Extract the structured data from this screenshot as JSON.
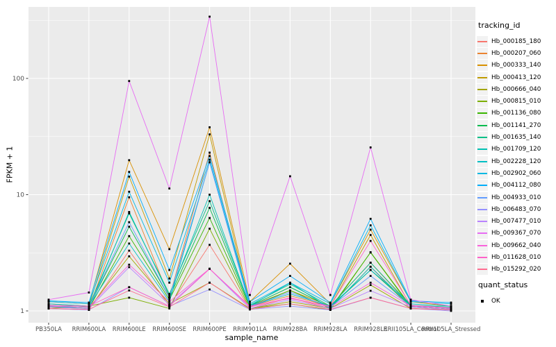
{
  "figure": {
    "background": "#FFFFFF",
    "panel_background": "#EBEBEB",
    "grid_color": "#FFFFFF",
    "point_color": "#000000",
    "axis_text_color": "#4D4D4D",
    "tick_color": "#333333"
  },
  "chart_data": {
    "type": "line",
    "title": "",
    "xlabel": "sample_name",
    "ylabel": "FPKM + 1",
    "yscale": "log10",
    "yticks": [
      1,
      10,
      100
    ],
    "yminor": [
      3.162,
      31.62,
      316.2
    ],
    "ylim": [
      0.79,
      410
    ],
    "grid": true,
    "marker": "black-square",
    "legend_position": "right",
    "legend_title": "tracking_id",
    "categories": [
      "PB350LA",
      "RRIM600LA",
      "RRIM600LE",
      "RRIM600SE",
      "RRIM600PE",
      "RRIM901LA",
      "RRIM928BA",
      "RRIM928LA",
      "RRIM928LE",
      "RRII105LA_Control",
      "RRII105LA_Stressed"
    ],
    "series": [
      {
        "name": "Hb_000185_180",
        "color": "#F8766D",
        "values": [
          1.05,
          1.02,
          3.3,
          1.1,
          3.7,
          1.05,
          1.3,
          1.05,
          2.4,
          1.05,
          1.02
        ]
      },
      {
        "name": "Hb_000207_060",
        "color": "#EA8331",
        "values": [
          1.1,
          1.05,
          9.5,
          1.3,
          23.0,
          1.1,
          1.35,
          1.1,
          2.6,
          1.1,
          1.05
        ]
      },
      {
        "name": "Hb_000333_140",
        "color": "#D89000",
        "values": [
          1.2,
          1.15,
          19.8,
          3.4,
          38.0,
          1.2,
          2.55,
          1.15,
          5.0,
          1.2,
          1.1
        ]
      },
      {
        "name": "Hb_000413_120",
        "color": "#C09B00",
        "values": [
          1.15,
          1.1,
          14.3,
          1.9,
          33.0,
          1.1,
          1.5,
          1.1,
          4.5,
          1.1,
          1.05
        ]
      },
      {
        "name": "Hb_000666_040",
        "color": "#A3A500",
        "values": [
          1.1,
          1.05,
          2.95,
          1.15,
          1.75,
          1.05,
          1.2,
          1.05,
          1.67,
          1.05,
          1.02
        ]
      },
      {
        "name": "Hb_000815_010",
        "color": "#7CAE00",
        "values": [
          1.05,
          1.1,
          1.3,
          1.05,
          5.1,
          1.05,
          1.15,
          1.02,
          3.2,
          1.1,
          1.05
        ]
      },
      {
        "name": "Hb_001136_080",
        "color": "#39B600",
        "values": [
          1.08,
          1.05,
          4.4,
          1.25,
          6.3,
          1.08,
          1.5,
          1.05,
          3.18,
          1.08,
          1.03
        ]
      },
      {
        "name": "Hb_001141_270",
        "color": "#00BB4E",
        "values": [
          1.1,
          1.08,
          5.3,
          1.3,
          7.7,
          1.1,
          1.6,
          1.08,
          2.25,
          1.1,
          1.05
        ]
      },
      {
        "name": "Hb_001635_140",
        "color": "#00C087",
        "values": [
          1.12,
          1.1,
          6.9,
          1.4,
          8.8,
          1.12,
          1.7,
          1.1,
          2.6,
          1.12,
          1.08
        ]
      },
      {
        "name": "Hb_001709_120",
        "color": "#00C0B2",
        "values": [
          1.1,
          1.05,
          7.1,
          1.35,
          10.0,
          1.1,
          1.75,
          1.05,
          2.4,
          1.1,
          1.05
        ]
      },
      {
        "name": "Hb_002228_120",
        "color": "#00BFC4",
        "values": [
          1.15,
          1.1,
          3.8,
          1.2,
          19.0,
          1.1,
          1.4,
          1.1,
          2.25,
          1.15,
          1.1
        ]
      },
      {
        "name": "Hb_002902_060",
        "color": "#00B9E3",
        "values": [
          1.2,
          1.15,
          10.6,
          1.75,
          20.0,
          1.15,
          1.75,
          1.15,
          5.45,
          1.2,
          1.15
        ]
      },
      {
        "name": "Hb_004112_080",
        "color": "#00ADFA",
        "values": [
          1.22,
          1.18,
          15.7,
          2.25,
          21.5,
          1.2,
          2.0,
          1.18,
          6.2,
          1.22,
          1.18
        ]
      },
      {
        "name": "Hb_004933_010",
        "color": "#619CFF",
        "values": [
          1.1,
          1.08,
          5.8,
          1.3,
          19.0,
          1.1,
          1.45,
          1.08,
          2.0,
          1.1,
          1.06
        ]
      },
      {
        "name": "Hb_006483_070",
        "color": "#9590FF",
        "values": [
          1.05,
          1.02,
          1.6,
          1.1,
          1.53,
          1.03,
          1.1,
          1.02,
          1.3,
          1.05,
          1.0
        ]
      },
      {
        "name": "Hb_007477_010",
        "color": "#B983FF",
        "values": [
          1.08,
          1.05,
          2.38,
          1.13,
          2.3,
          1.05,
          1.25,
          1.05,
          1.49,
          1.08,
          1.03
        ]
      },
      {
        "name": "Hb_009367_070",
        "color": "#E76BF3",
        "values": [
          1.25,
          1.44,
          95.0,
          11.3,
          340.0,
          1.37,
          14.4,
          1.37,
          25.5,
          1.25,
          1.1
        ]
      },
      {
        "name": "Hb_009662_040",
        "color": "#FA62DB",
        "values": [
          1.1,
          1.08,
          2.5,
          1.2,
          2.31,
          1.08,
          1.3,
          1.08,
          1.75,
          1.1,
          1.05
        ]
      },
      {
        "name": "Hb_011628_010",
        "color": "#FF61C9",
        "values": [
          1.12,
          1.1,
          1.6,
          1.1,
          2.3,
          1.1,
          1.28,
          1.1,
          4.0,
          1.12,
          1.06
        ]
      },
      {
        "name": "Hb_015292_020",
        "color": "#FF6C91",
        "values": [
          1.05,
          1.03,
          1.5,
          1.08,
          1.75,
          1.03,
          1.15,
          1.03,
          1.3,
          1.05,
          1.02
        ]
      }
    ],
    "quant_legend": {
      "title": "quant_status",
      "items": [
        {
          "label": "OK",
          "marker": "black-square"
        }
      ]
    }
  }
}
